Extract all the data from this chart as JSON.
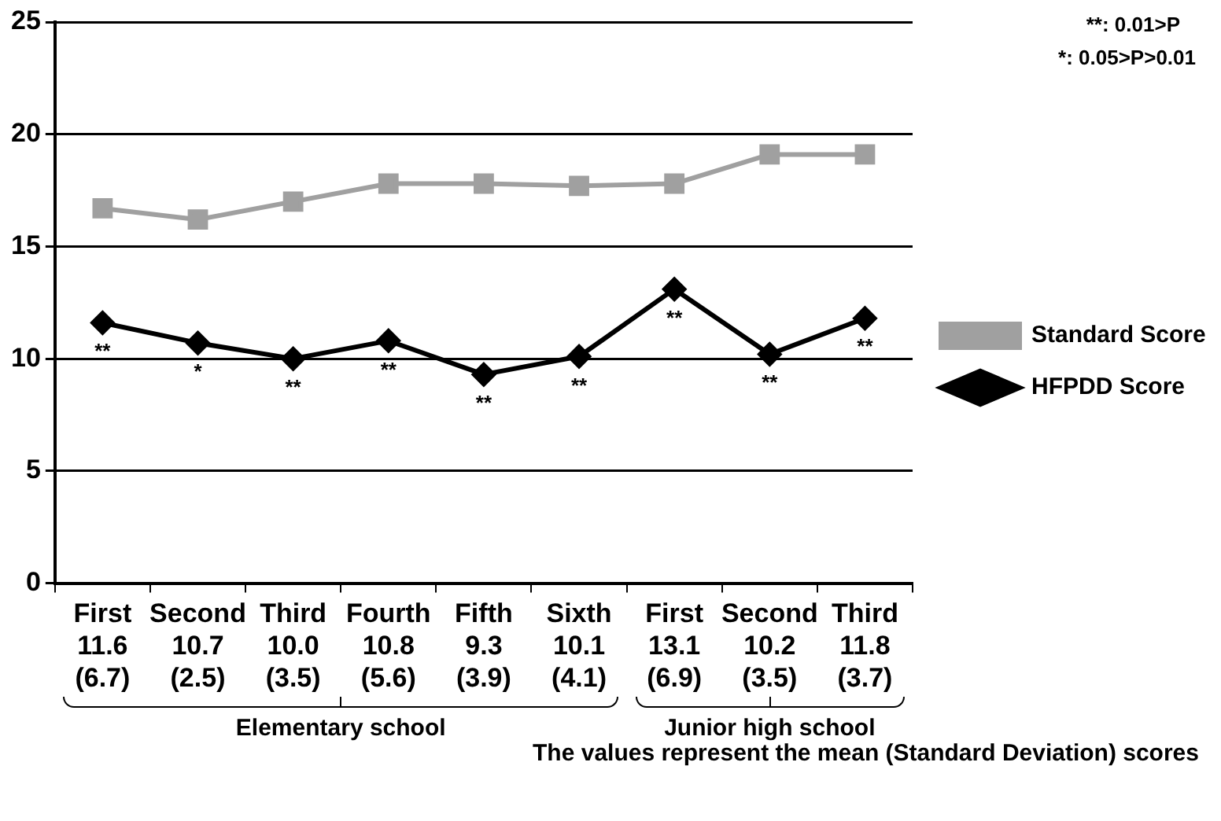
{
  "chart_data": {
    "type": "line",
    "categories": [
      "First\n11.6\n(6.7)",
      "Second\n10.7\n(2.5)",
      "Third\n10.0\n(3.5)",
      "Fourth\n10.8\n(5.6)",
      "Fifth\n9.3\n(3.9)",
      "Sixth\n10.1\n(4.1)",
      "First\n13.1\n(6.9)",
      "Second\n10.2\n(3.5)",
      "Third\n11.8\n(3.7)"
    ],
    "series": [
      {
        "name": "Standard Score",
        "color": "#a0a0a0",
        "marker": "square",
        "values": [
          16.7,
          16.2,
          17.0,
          17.8,
          17.8,
          17.7,
          17.8,
          19.1,
          19.1
        ]
      },
      {
        "name": "HFPDD Score",
        "color": "#000000",
        "marker": "diamond",
        "values": [
          11.6,
          10.7,
          10.0,
          10.8,
          9.3,
          10.1,
          13.1,
          10.2,
          11.8
        ]
      }
    ],
    "ylim": [
      0,
      25
    ],
    "yticks": [
      0,
      5,
      10,
      15,
      20,
      25
    ],
    "grid": "y",
    "legend": "right",
    "line_style": "solid",
    "annotations": [
      "**: 0.01>P",
      "*: 0.05>P>0.01",
      "Elementary school",
      "Junior high school",
      "The values represent the mean (Standard Deviation) scores",
      {
        "text": "**",
        "x": "First\n11.6\n(6.7)",
        "y": 11.6
      },
      {
        "text": "*",
        "x": "Second\n10.7\n(2.5)",
        "y": 10.7
      },
      {
        "text": "**",
        "x": "Third\n10.0\n(3.5)",
        "y": 10.0
      },
      {
        "text": "**",
        "x": "Fourth\n10.8\n(5.6)",
        "y": 10.8
      },
      {
        "text": "**",
        "x": "Fifth\n9.3\n(3.9)",
        "y": 9.3
      },
      {
        "text": "**",
        "x": "Sixth\n10.1\n(4.1)",
        "y": 10.1
      },
      {
        "text": "**",
        "x": "First\n13.1\n(6.9)",
        "y": 13.1
      },
      {
        "text": "**",
        "x": "Second\n10.2\n(3.5)",
        "y": 10.2
      },
      {
        "text": "**",
        "x": "Third\n11.8\n(3.7)",
        "y": 11.8
      }
    ]
  }
}
